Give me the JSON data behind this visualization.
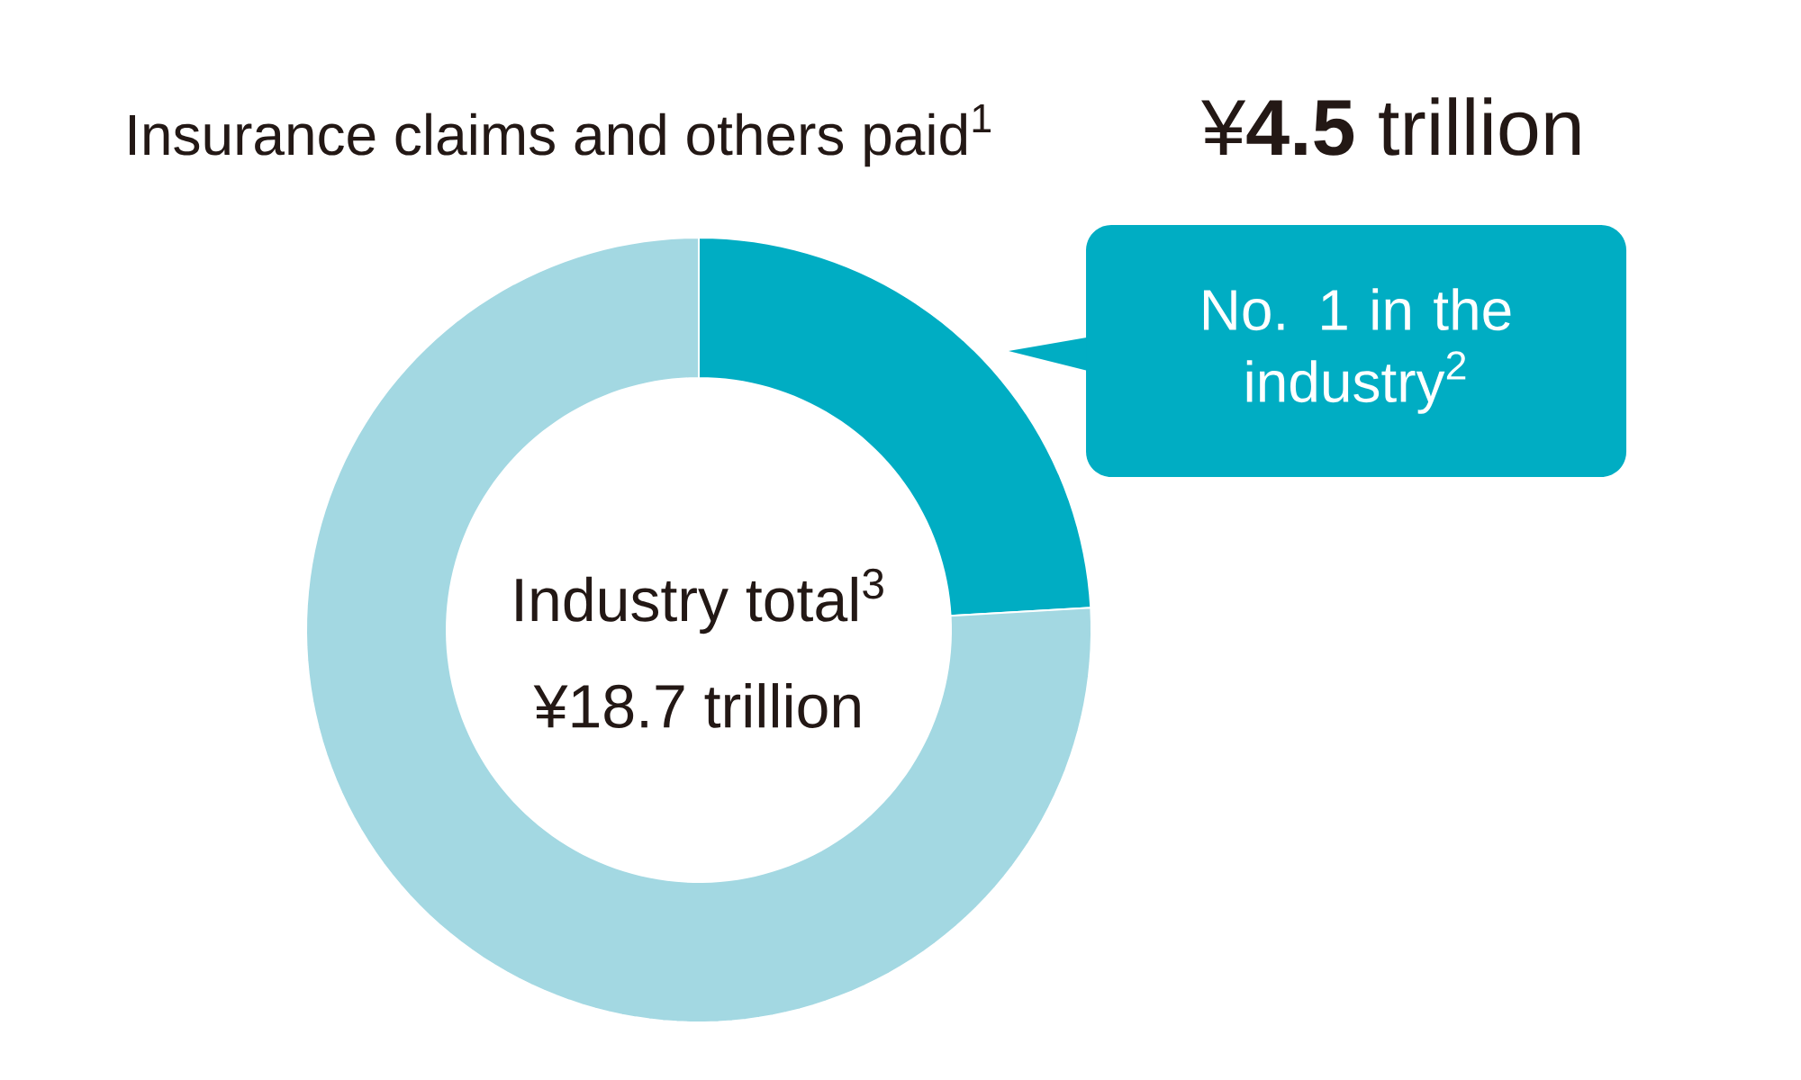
{
  "chart_data": {
    "type": "donut",
    "title": "Insurance claims and others paid$^{1}$",
    "categories": [
      null,
      null
    ],
    "values": [
      24.1,
      75.9
    ],
    "colors": [
      "#00adc3",
      "#a3d8e2"
    ],
    "annotations": [
      "¥**4.5** trillion",
      "No. 1 in the industry$^{2}$",
      "Industry total$^{3}$",
      "¥18.7 trillion"
    ]
  }
}
